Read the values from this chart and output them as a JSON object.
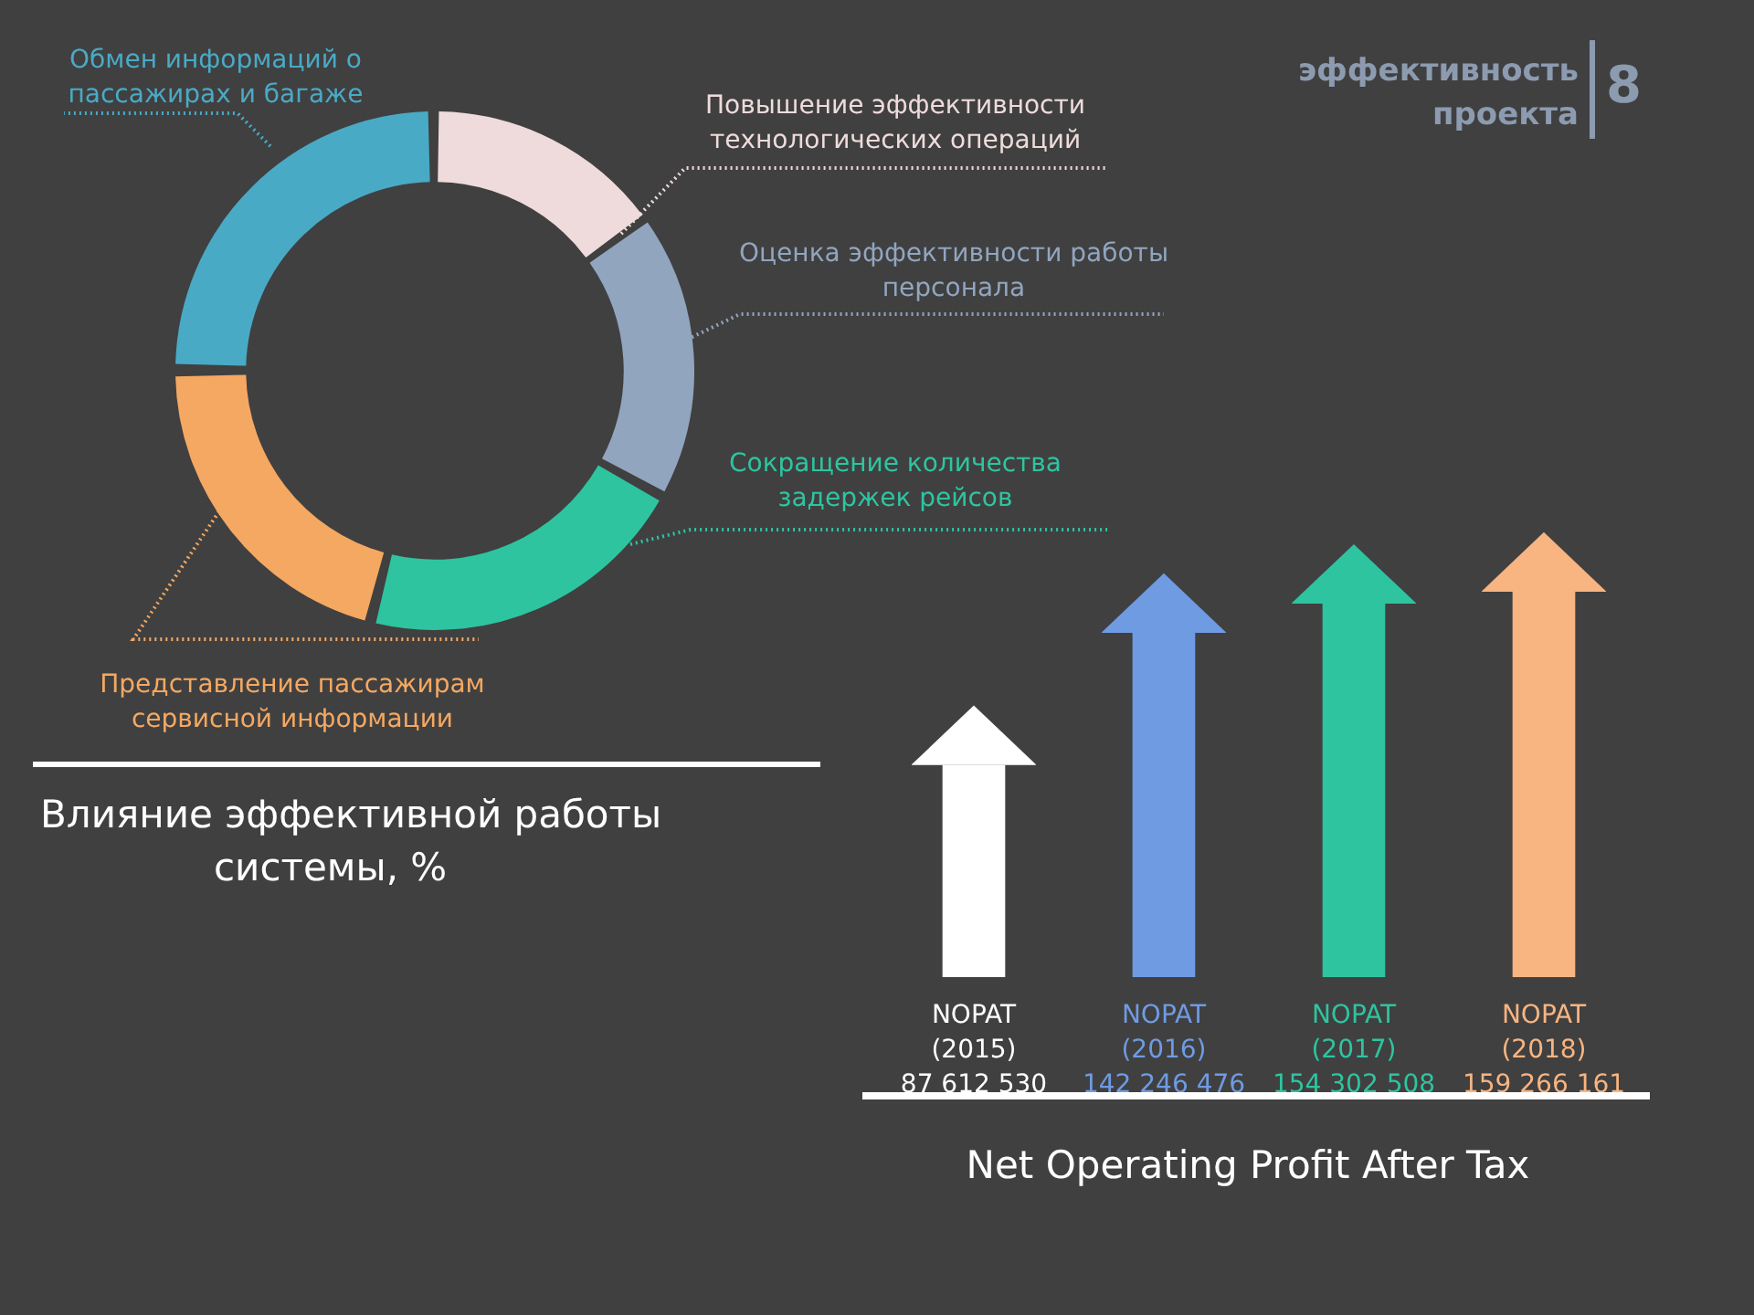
{
  "chart_data": [
    {
      "type": "donut",
      "title": "Влияние эффективной работы системы, %",
      "annotations": [
        "эффективность проекта",
        "8"
      ],
      "categories": [
        "Повышение эффективности технологических операций",
        "Оценка эффективности работы персонала",
        "Сокращение количества задержек рейсов",
        "Представление пассажирам сервисной информации",
        "Обмен информаций о пассажирах и багаже"
      ],
      "values": [
        15,
        18,
        21,
        21,
        25
      ],
      "colors": [
        "#efdbdb",
        "#91a5bf",
        "#2ec4a0",
        "#f4a862",
        "#49aac6"
      ]
    },
    {
      "type": "bar",
      "xlabel": "Net Operating Profit After Tax",
      "categories": [
        "NOPAT (2015)",
        "NOPAT (2016)",
        "NOPAT (2017)",
        "NOPAT (2018)"
      ],
      "values": [
        87612530,
        142246476,
        154302508,
        159266161
      ],
      "value_labels": [
        "87 612 530",
        "142 246 476",
        "154 302 508",
        "159 266 161"
      ],
      "colors": [
        "#ffffff",
        "#6f9be3",
        "#2ec4a0",
        "#f8b481"
      ]
    }
  ]
}
